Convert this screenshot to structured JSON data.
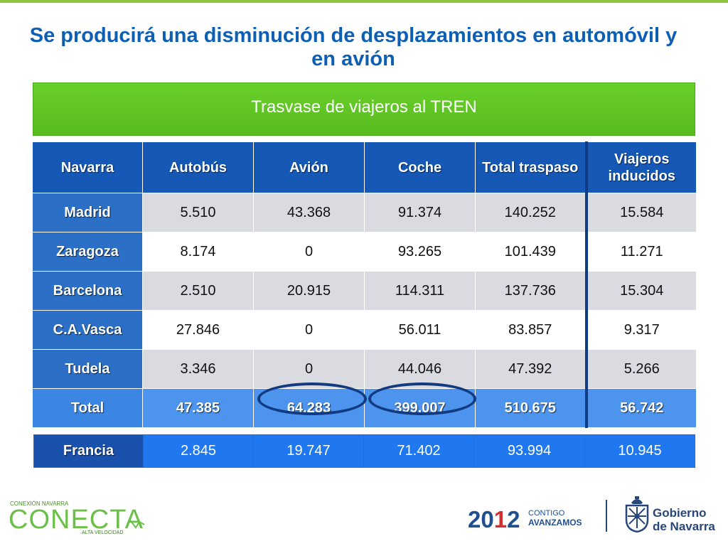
{
  "slide": {
    "title": "Se producirá una disminución de desplazamientos en automóvil y en avión",
    "banner": "Trasvase de viajeros al TREN"
  },
  "table": {
    "headers": [
      "Navarra",
      "Autobús",
      "Avión",
      "Coche",
      "Total traspaso",
      "Viajeros inducidos"
    ],
    "rows": [
      {
        "label": "Madrid",
        "values": [
          "5.510",
          "43.368",
          "91.374",
          "140.252",
          "15.584"
        ]
      },
      {
        "label": "Zaragoza",
        "values": [
          "8.174",
          "0",
          "93.265",
          "101.439",
          "11.271"
        ]
      },
      {
        "label": "Barcelona",
        "values": [
          "2.510",
          "20.915",
          "114.311",
          "137.736",
          "15.304"
        ]
      },
      {
        "label": "C.A.Vasca",
        "values": [
          "27.846",
          "0",
          "56.011",
          "83.857",
          "9.317"
        ]
      },
      {
        "label": "Tudela",
        "values": [
          "3.346",
          "0",
          "44.046",
          "47.392",
          "5.266"
        ]
      }
    ],
    "total": {
      "label": "Total",
      "values": [
        "47.385",
        "64.283",
        "399.007",
        "510.675",
        "56.742"
      ]
    }
  },
  "francia": {
    "label": "Francia",
    "values": [
      "2.845",
      "19.747",
      "71.402",
      "93.994",
      "10.945"
    ]
  },
  "logos": {
    "conecta_top": "CONEXIÓN NAVARRA",
    "conecta_main": "CONECTA",
    "conecta_sub": "ALTA VELOCIDAD",
    "year_a": "20",
    "year_b": "1",
    "year_c": "2",
    "contigo": "CONTIGO",
    "avanzamos": "AVANZAMOS",
    "gobierno": "Gobierno",
    "de_navarra": "de Navarra"
  },
  "colors": {
    "title": "#0d5fb4",
    "banner": "#5fc424",
    "header": "#1558b6",
    "total_row": "#4d94ee",
    "annotation_ellipse": "#123a80"
  },
  "annotations": {
    "circled_cells": [
      "total.Avión",
      "total.Coche"
    ]
  }
}
